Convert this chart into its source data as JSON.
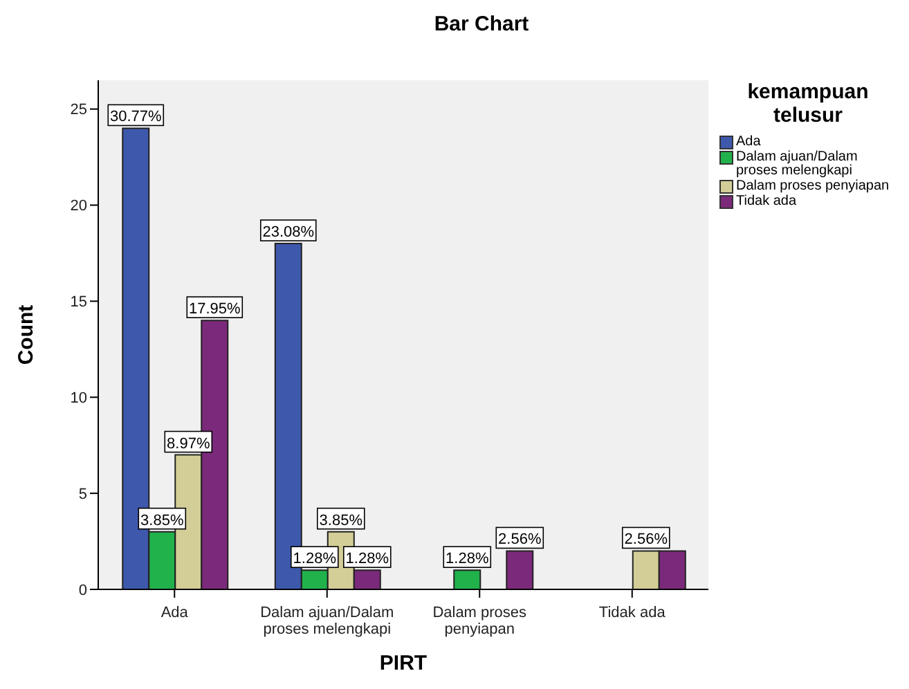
{
  "chart_data": {
    "type": "bar",
    "title": "Bar Chart",
    "xlabel": "PIRT",
    "ylabel": "Count",
    "legend_title": "kemampuan telusur",
    "legend": "right",
    "categories": [
      "Ada",
      "Dalam ajuan/Dalam proses melengkapi",
      "Dalam proses penyiapan",
      "Tidak ada"
    ],
    "series": [
      {
        "name": "Ada",
        "color": "#3e58ac",
        "values": [
          24,
          18,
          0,
          0
        ]
      },
      {
        "name": "Dalam ajuan/Dalam proses melengkapi",
        "color": "#21b24b",
        "values": [
          3,
          1,
          1,
          0
        ]
      },
      {
        "name": "Dalam proses penyiapan",
        "color": "#d3ce97",
        "values": [
          7,
          3,
          0,
          2
        ]
      },
      {
        "name": "Tidak ada",
        "color": "#7b2a7b",
        "values": [
          14,
          1,
          2,
          2
        ]
      }
    ],
    "annotations": [
      "30.77%",
      "23.08%",
      "17.95%",
      "2.56%",
      {
        "text": "3.85%",
        "x": "Ada",
        "y": 3
      },
      {
        "text": "8.97%",
        "x": "Ada",
        "y": 7
      },
      {
        "text": "1.28%",
        "x": "Dalam ajuan/Dalam proses melengkapi",
        "y": 1
      },
      {
        "text": "3.85%",
        "x": "Dalam ajuan/Dalam proses melengkapi",
        "y": 3
      },
      {
        "text": "1.28%",
        "x": "Dalam ajuan/Dalam proses melengkapi",
        "y": 1
      },
      {
        "text": "1.28%",
        "x": "Dalam proses penyiapan",
        "y": 1
      },
      {
        "text": "2.56%",
        "x": "Tidak ada",
        "y": 2
      }
    ],
    "ylim": [
      0,
      26.5
    ],
    "yticks": [
      0,
      5,
      10,
      15,
      20,
      25
    ],
    "grid": false
  }
}
